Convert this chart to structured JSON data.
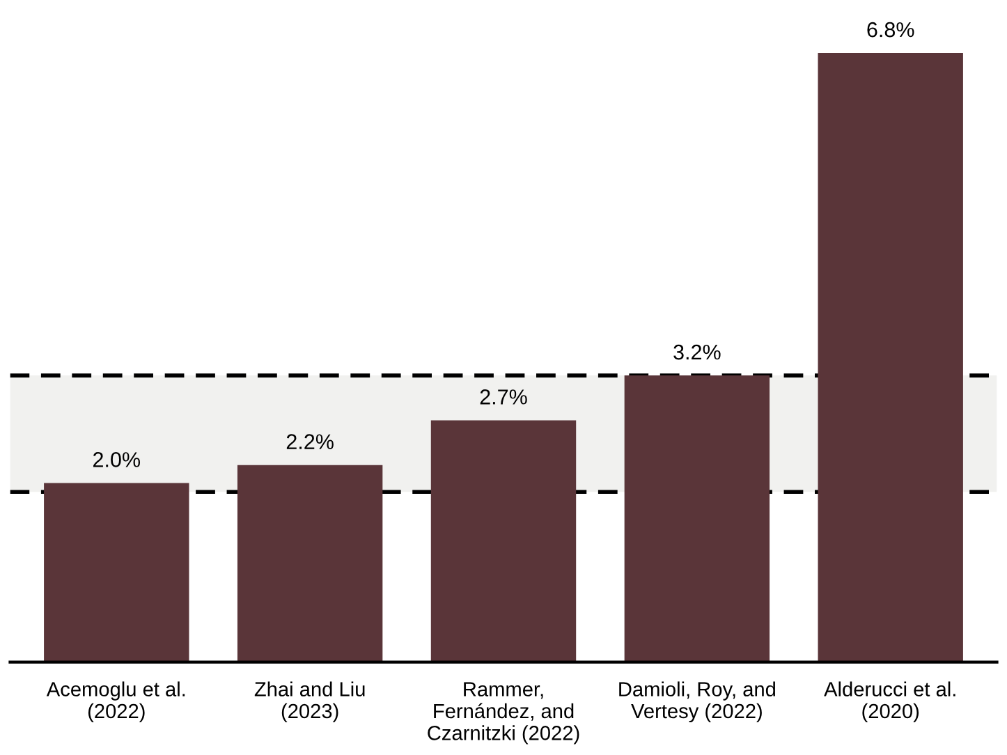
{
  "chart_data": {
    "type": "bar",
    "categories": [
      "Acemoglu et al.\n(2022)",
      "Zhai and Liu\n(2023)",
      "Rammer,\nFernández, and\nCzarnitzki (2022)",
      "Damioli, Roy, and\nVertesy (2022)",
      "Alderucci et al.\n(2020)"
    ],
    "values": [
      2.0,
      2.2,
      2.7,
      3.2,
      6.8
    ],
    "value_labels": [
      "2.0%",
      "2.2%",
      "2.7%",
      "3.2%",
      "6.8%"
    ],
    "color": "#5a3539",
    "tick_labels": "x",
    "grid": false,
    "bands": [
      {
        "axis": "y",
        "from": 1.9,
        "to": 3.2,
        "color": "#f1f1ef"
      }
    ],
    "ref_lines": [
      {
        "axis": "y",
        "value": 1.9,
        "color": "#000000",
        "line_style": "dashed"
      },
      {
        "axis": "y",
        "value": 3.2,
        "color": "#000000",
        "line_style": "dashed"
      }
    ]
  }
}
